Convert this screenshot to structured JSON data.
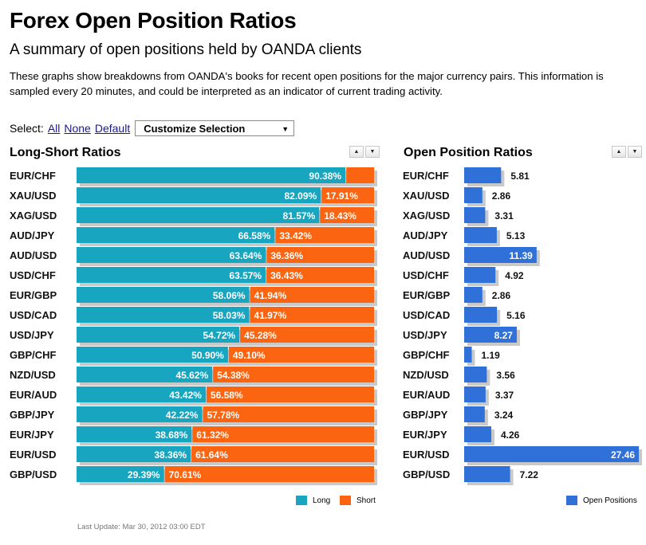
{
  "header": {
    "title": "Forex Open Position Ratios",
    "subtitle": "A summary of open positions held by OANDA clients",
    "description": "These graphs show breakdowns from OANDA's books for recent open positions for the major currency pairs. This information is sampled every 20 minutes, and could be interpreted as an indicator of current trading activity."
  },
  "select": {
    "label": "Select:",
    "all": "All",
    "none": "None",
    "default": "Default",
    "customize": "Customize Selection",
    "customize_arrow": "▼"
  },
  "sort": {
    "up": "▲",
    "down": "▼"
  },
  "colors": {
    "long": "#17a5bf",
    "short": "#fb6410",
    "open": "#2f70d9",
    "shadow": "#c9c9c9"
  },
  "long_short": {
    "title": "Long-Short Ratios",
    "legend_long": "Long",
    "legend_short": "Short"
  },
  "open_positions": {
    "title": "Open Position Ratios",
    "legend": "Open Positions"
  },
  "footer": {
    "last_update": "Last Update: Mar 30, 2012 03:00 EDT"
  },
  "chart_data": [
    {
      "type": "bar",
      "title": "Long-Short Ratios",
      "orientation": "horizontal",
      "stacked": true,
      "categories": [
        "EUR/CHF",
        "XAU/USD",
        "XAG/USD",
        "AUD/JPY",
        "AUD/USD",
        "USD/CHF",
        "EUR/GBP",
        "USD/CAD",
        "USD/JPY",
        "GBP/CHF",
        "NZD/USD",
        "EUR/AUD",
        "GBP/JPY",
        "EUR/JPY",
        "EUR/USD",
        "GBP/USD"
      ],
      "series": [
        {
          "name": "Long",
          "values": [
            90.38,
            82.09,
            81.57,
            66.58,
            63.64,
            63.57,
            58.06,
            58.03,
            54.72,
            50.9,
            45.62,
            43.42,
            42.22,
            38.68,
            38.36,
            29.39
          ],
          "labels": [
            "90.38%",
            "82.09%",
            "81.57%",
            "66.58%",
            "63.64%",
            "63.57%",
            "58.06%",
            "58.03%",
            "54.72%",
            "50.90%",
            "45.62%",
            "43.42%",
            "42.22%",
            "38.68%",
            "38.36%",
            "29.39%"
          ]
        },
        {
          "name": "Short",
          "values": [
            9.62,
            17.91,
            18.43,
            33.42,
            36.36,
            36.43,
            41.94,
            41.97,
            45.28,
            49.1,
            54.38,
            56.58,
            57.78,
            61.32,
            61.64,
            70.61
          ],
          "labels": [
            "",
            "17.91%",
            "18.43%",
            "33.42%",
            "36.36%",
            "36.43%",
            "41.94%",
            "41.97%",
            "45.28%",
            "49.10%",
            "54.38%",
            "56.58%",
            "57.78%",
            "61.32%",
            "61.64%",
            "70.61%"
          ]
        }
      ],
      "xlim": [
        0,
        100
      ],
      "legend_position": "bottom-right"
    },
    {
      "type": "bar",
      "title": "Open Position Ratios",
      "orientation": "horizontal",
      "categories": [
        "EUR/CHF",
        "XAU/USD",
        "XAG/USD",
        "AUD/JPY",
        "AUD/USD",
        "USD/CHF",
        "EUR/GBP",
        "USD/CAD",
        "USD/JPY",
        "GBP/CHF",
        "NZD/USD",
        "EUR/AUD",
        "GBP/JPY",
        "EUR/JPY",
        "EUR/USD",
        "GBP/USD"
      ],
      "series": [
        {
          "name": "Open Positions",
          "values": [
            5.81,
            2.86,
            3.31,
            5.13,
            11.39,
            4.92,
            2.86,
            5.16,
            8.27,
            1.19,
            3.56,
            3.37,
            3.24,
            4.26,
            27.46,
            7.22
          ],
          "labels": [
            "5.81",
            "2.86",
            "3.31",
            "5.13",
            "11.39",
            "4.92",
            "2.86",
            "5.16",
            "8.27",
            "1.19",
            "3.56",
            "3.37",
            "3.24",
            "4.26",
            "27.46",
            "7.22"
          ]
        }
      ],
      "xlim": [
        0,
        27.46
      ],
      "legend_position": "bottom-right"
    }
  ]
}
